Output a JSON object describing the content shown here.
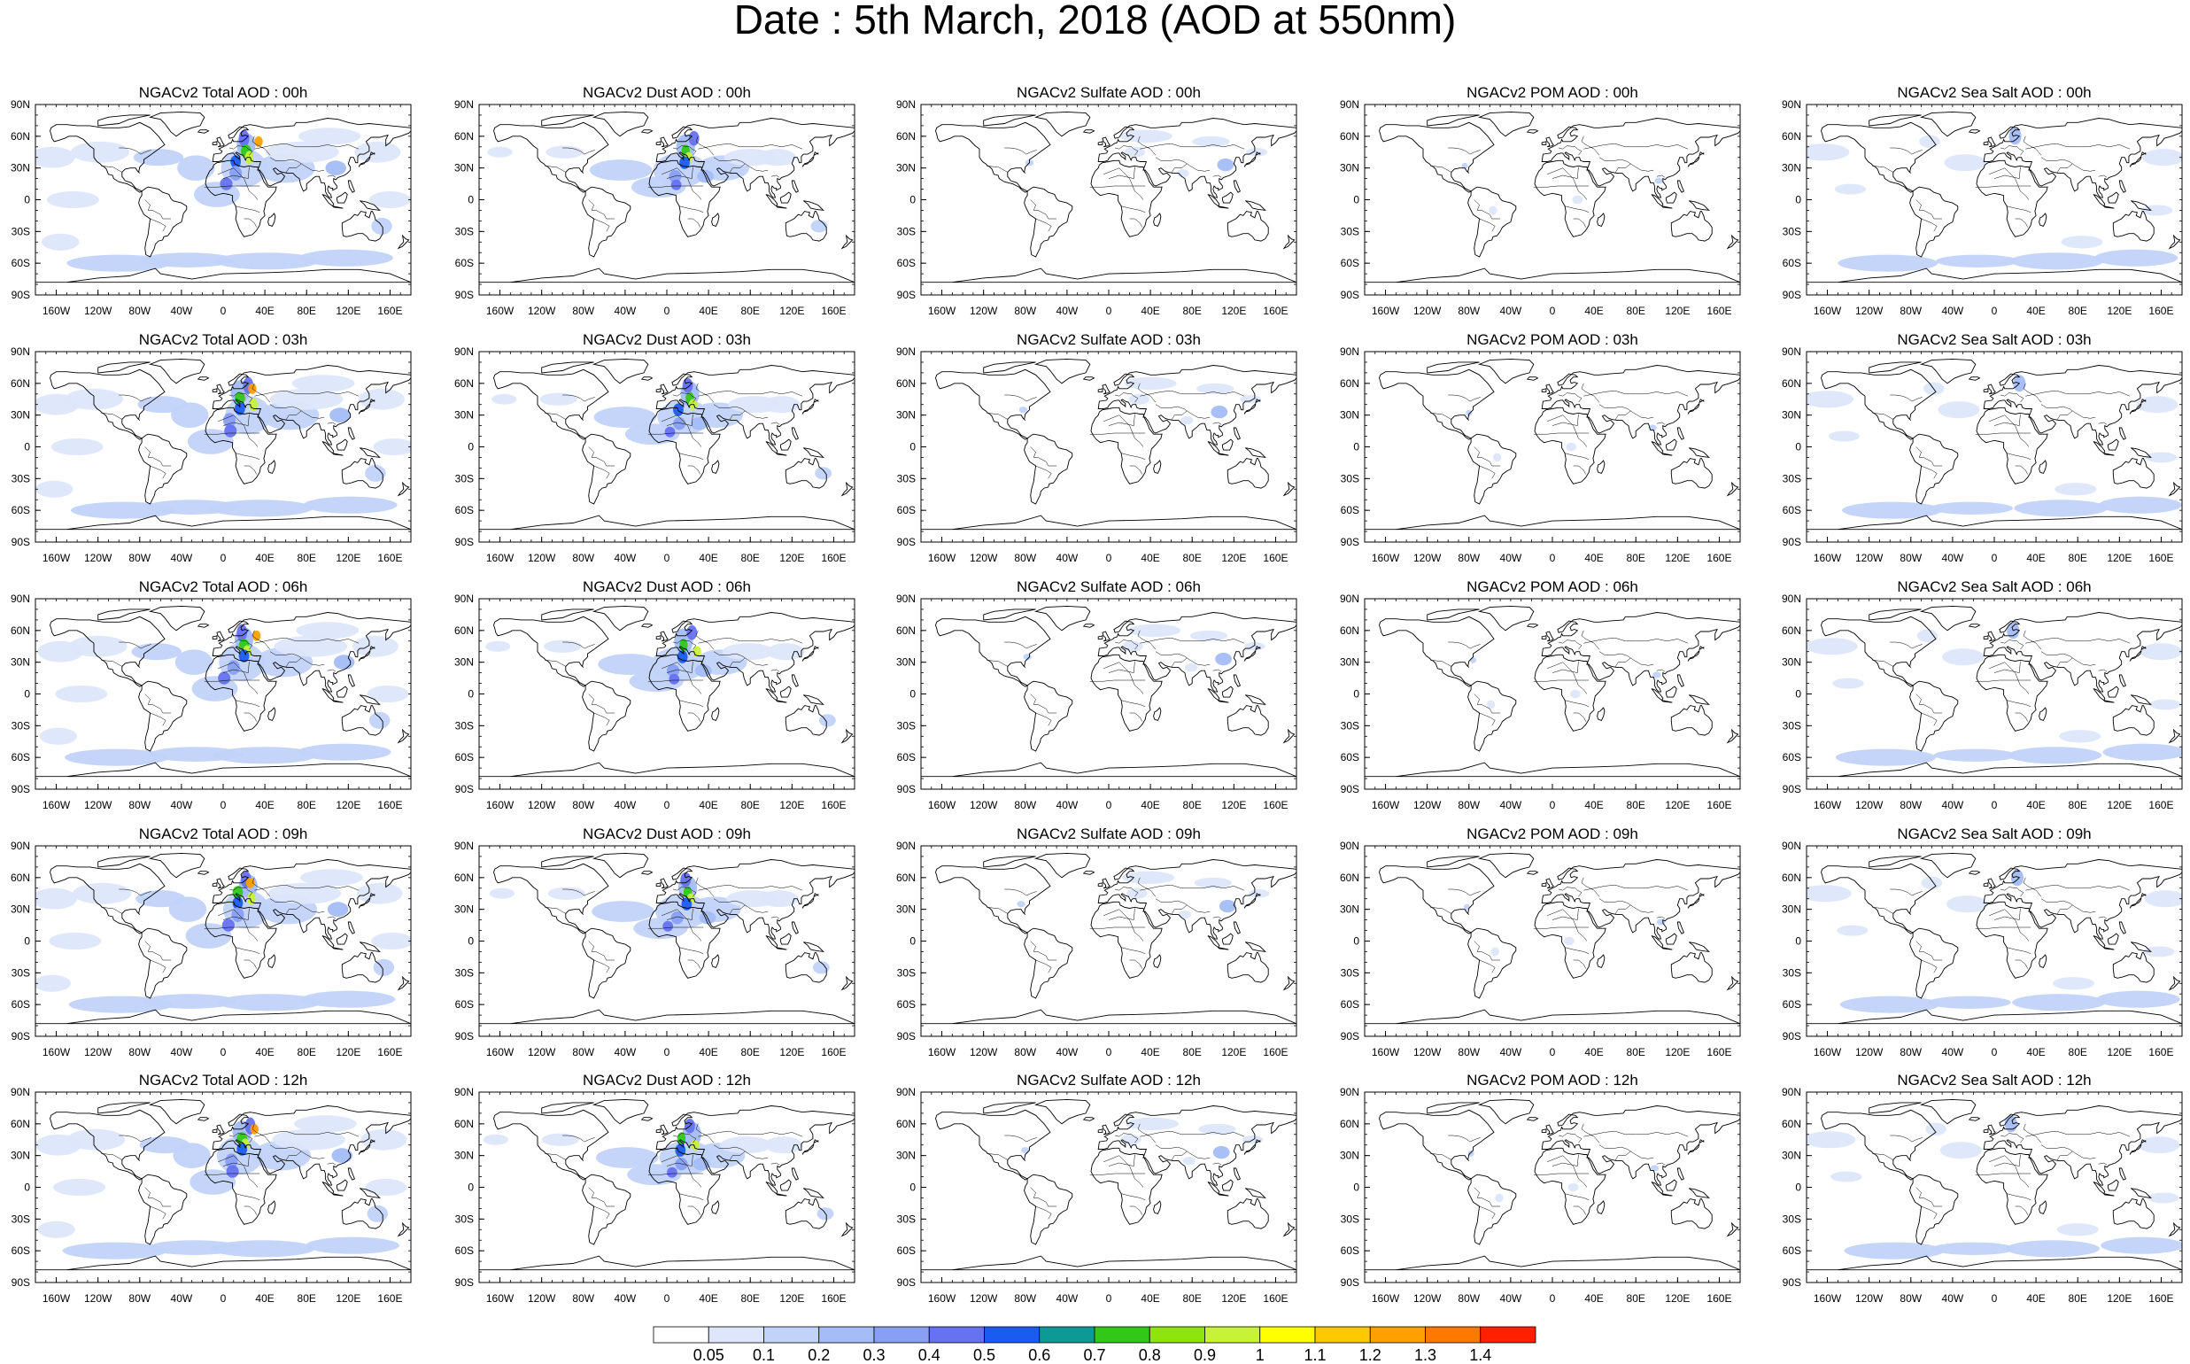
{
  "title": "Date : 5th March, 2018 (AOD at 550nm)",
  "panels": [
    [
      "NGACv2 Total AOD : 00h",
      "NGACv2 Dust AOD : 00h",
      "NGACv2 Sulfate AOD : 00h",
      "NGACv2 POM AOD : 00h",
      "NGACv2 Sea Salt AOD : 00h"
    ],
    [
      "NGACv2 Total AOD : 03h",
      "NGACv2 Dust AOD : 03h",
      "NGACv2 Sulfate AOD : 03h",
      "NGACv2 POM AOD : 03h",
      "NGACv2 Sea Salt AOD : 03h"
    ],
    [
      "NGACv2 Total AOD : 06h",
      "NGACv2 Dust AOD : 06h",
      "NGACv2 Sulfate AOD : 06h",
      "NGACv2 POM AOD : 06h",
      "NGACv2 Sea Salt AOD : 06h"
    ],
    [
      "NGACv2 Total AOD : 09h",
      "NGACv2 Dust AOD : 09h",
      "NGACv2 Sulfate AOD : 09h",
      "NGACv2 POM AOD : 09h",
      "NGACv2 Sea Salt  AOD : 09h"
    ],
    [
      "NGACv2 Total AOD :  12h",
      "NGACv2 Dust AOD : 12h",
      "NGACv2 Sulfate AOD : 12h",
      "NGACv2 POM  AOD : 12h",
      "NGACv2 Sea Salt  AOD : 12h"
    ]
  ],
  "lat_labels": [
    "90N",
    "60N",
    "30N",
    "0",
    "30S",
    "60S",
    "90S"
  ],
  "lon_labels": [
    "160W",
    "120W",
    "80W",
    "40W",
    "0",
    "40E",
    "80E",
    "120E",
    "160E"
  ],
  "lon_values": [
    -160,
    -120,
    -80,
    -40,
    0,
    40,
    80,
    120,
    160
  ],
  "lat_values": [
    90,
    60,
    30,
    0,
    -30,
    -60,
    -90
  ],
  "colorbar": {
    "labels": [
      "0.05",
      "0.1",
      "0.2",
      "0.3",
      "0.4",
      "0.5",
      "0.6",
      "0.7",
      "0.8",
      "0.9",
      "1",
      "1.1",
      "1.2",
      "1.3",
      "1.4"
    ],
    "colors": [
      "#ffffff",
      "#dde6fb",
      "#c2d3fa",
      "#a4bdf7",
      "#889ff4",
      "#6672f0",
      "#1a5cf2",
      "#0d9a96",
      "#31c818",
      "#8fe40e",
      "#c8f236",
      "#ffff00",
      "#ffc800",
      "#ffa000",
      "#ff7800",
      "#ff2000"
    ]
  },
  "chart_data": {
    "type": "heatmap",
    "title": "Date : 5th March, 2018 (AOD at 550nm)",
    "rows": [
      "00h",
      "03h",
      "06h",
      "09h",
      "12h"
    ],
    "columns": [
      "Total",
      "Dust",
      "Sulfate",
      "POM",
      "Sea Salt"
    ],
    "xlim": [
      -180,
      180
    ],
    "ylim": [
      -90,
      90
    ],
    "colorbar_levels": [
      0.05,
      0.1,
      0.2,
      0.3,
      0.4,
      0.5,
      0.6,
      0.7,
      0.8,
      0.9,
      1,
      1.1,
      1.2,
      1.3,
      1.4
    ]
  }
}
